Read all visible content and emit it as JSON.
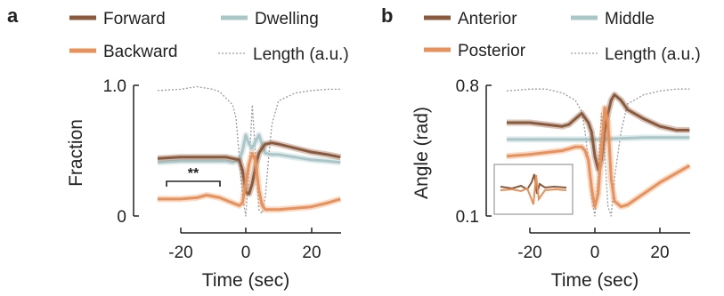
{
  "colors": {
    "forward": "#8b5a3c",
    "backward": "#e8915a",
    "dwelling": "#a9c7c9",
    "length": "#9a9a9a",
    "axis": "#222222"
  },
  "panel_a": {
    "letter": "a",
    "legend": {
      "forward": "Forward",
      "dwelling": "Dwelling",
      "backward": "Backward",
      "length": "Length (a.u.)"
    },
    "ylabel": "Fraction",
    "xlabel": "Time (sec)",
    "yticks": [
      "1.0",
      "0"
    ],
    "xticks": [
      "-20",
      "0",
      "20"
    ],
    "annotation": "**"
  },
  "panel_b": {
    "letter": "b",
    "legend": {
      "anterior": "Anterior",
      "middle": "Middle",
      "posterior": "Posterior",
      "length": "Length (a.u.)"
    },
    "ylabel": "Angle (rad)",
    "xlabel": "Time (sec)",
    "yticks": [
      "0.8",
      "0.1"
    ],
    "xticks": [
      "-20",
      "0",
      "20"
    ]
  },
  "chart_data": [
    {
      "type": "line",
      "xlabel": "Time (sec)",
      "ylabel": "Fraction",
      "xlim": [
        -30,
        30
      ],
      "ylim": [
        0,
        1.0
      ],
      "grid": false,
      "legend_position": "top",
      "series": [
        {
          "name": "Forward",
          "x": [
            -27,
            -20,
            -15,
            -10,
            -6,
            -4,
            -2,
            -1,
            0,
            1,
            2,
            3,
            4,
            5,
            6,
            8,
            10,
            15,
            20,
            25,
            29
          ],
          "y": [
            0.44,
            0.45,
            0.45,
            0.45,
            0.45,
            0.44,
            0.43,
            0.35,
            0.18,
            0.17,
            0.25,
            0.38,
            0.48,
            0.52,
            0.55,
            0.56,
            0.55,
            0.52,
            0.49,
            0.47,
            0.45
          ]
        },
        {
          "name": "Backward",
          "x": [
            -27,
            -20,
            -15,
            -12,
            -10,
            -8,
            -6,
            -4,
            -2,
            -1,
            0,
            1,
            2,
            3,
            4,
            5,
            6,
            8,
            10,
            15,
            20,
            25,
            29
          ],
          "y": [
            0.13,
            0.13,
            0.14,
            0.16,
            0.15,
            0.14,
            0.12,
            0.1,
            0.08,
            0.1,
            0.25,
            0.4,
            0.48,
            0.42,
            0.2,
            0.08,
            0.05,
            0.05,
            0.05,
            0.06,
            0.07,
            0.1,
            0.13
          ]
        },
        {
          "name": "Dwelling",
          "x": [
            -27,
            -20,
            -15,
            -10,
            -6,
            -4,
            -2,
            -1,
            0,
            1,
            2,
            3,
            4,
            5,
            6,
            8,
            10,
            15,
            20,
            25,
            29
          ],
          "y": [
            0.41,
            0.42,
            0.42,
            0.42,
            0.42,
            0.41,
            0.43,
            0.5,
            0.62,
            0.55,
            0.52,
            0.57,
            0.62,
            0.55,
            0.48,
            0.47,
            0.47,
            0.45,
            0.43,
            0.42,
            0.41
          ]
        },
        {
          "name": "Length (a.u.)",
          "x": [
            -27,
            -20,
            -15,
            -10,
            -8,
            -6,
            -4,
            -3,
            -2,
            -1,
            0,
            1,
            2,
            3,
            4,
            5,
            6,
            7,
            8,
            10,
            15,
            20,
            25,
            29
          ],
          "y": [
            0.96,
            0.97,
            0.99,
            0.97,
            0.95,
            0.9,
            0.85,
            0.75,
            0.45,
            0.15,
            0.0,
            0.35,
            0.85,
            0.45,
            0.05,
            0.02,
            0.15,
            0.45,
            0.7,
            0.88,
            0.94,
            0.96,
            0.97,
            0.97
          ]
        }
      ]
    },
    {
      "type": "line",
      "xlabel": "Time (sec)",
      "ylabel": "Angle (rad)",
      "xlim": [
        -30,
        30
      ],
      "ylim": [
        0.1,
        0.8
      ],
      "grid": false,
      "legend_position": "top",
      "series": [
        {
          "name": "Anterior",
          "x": [
            -27,
            -20,
            -15,
            -10,
            -8,
            -6,
            -4,
            -2,
            -1,
            0,
            1,
            2,
            3,
            4,
            5,
            6,
            8,
            10,
            15,
            20,
            25,
            29
          ],
          "y": [
            0.6,
            0.6,
            0.59,
            0.58,
            0.59,
            0.62,
            0.65,
            0.6,
            0.55,
            0.42,
            0.35,
            0.4,
            0.55,
            0.65,
            0.72,
            0.75,
            0.72,
            0.67,
            0.62,
            0.58,
            0.56,
            0.56
          ]
        },
        {
          "name": "Posterior",
          "x": [
            -27,
            -20,
            -15,
            -10,
            -8,
            -6,
            -4,
            -3,
            -2,
            -1,
            0,
            1,
            2,
            3,
            4,
            5,
            6,
            8,
            10,
            15,
            20,
            25,
            29
          ],
          "y": [
            0.42,
            0.43,
            0.44,
            0.45,
            0.46,
            0.47,
            0.47,
            0.45,
            0.4,
            0.25,
            0.15,
            0.22,
            0.45,
            0.68,
            0.6,
            0.3,
            0.18,
            0.15,
            0.16,
            0.22,
            0.28,
            0.33,
            0.37
          ]
        },
        {
          "name": "Middle",
          "x": [
            -27,
            -15,
            0,
            15,
            29
          ],
          "y": [
            0.51,
            0.51,
            0.51,
            0.52,
            0.52
          ]
        },
        {
          "name": "Length (a.u.)",
          "x": [
            -27,
            -20,
            -15,
            -10,
            -6,
            -4,
            -3,
            -2,
            -1,
            0,
            1,
            2,
            3,
            4,
            5,
            6,
            8,
            10,
            15,
            20,
            25,
            29
          ],
          "y": [
            0.77,
            0.78,
            0.78,
            0.76,
            0.72,
            0.66,
            0.55,
            0.4,
            0.2,
            0.1,
            0.3,
            0.65,
            0.45,
            0.15,
            0.1,
            0.3,
            0.55,
            0.7,
            0.75,
            0.77,
            0.78,
            0.78
          ]
        }
      ]
    }
  ]
}
